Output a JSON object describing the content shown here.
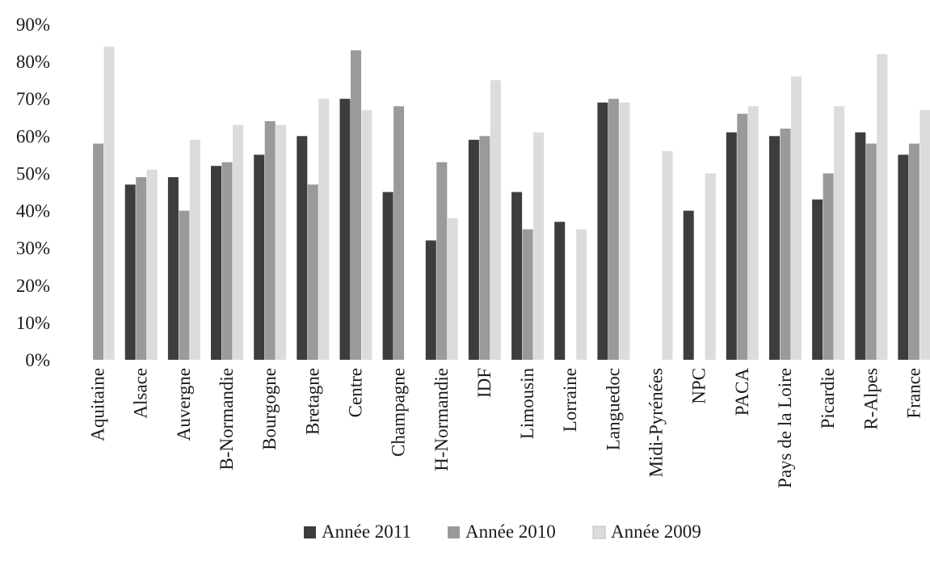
{
  "chart_data": {
    "type": "bar",
    "title": "",
    "xlabel": "",
    "ylabel": "",
    "ylim": [
      0,
      90
    ],
    "y_ticks": [
      "0%",
      "10%",
      "20%",
      "30%",
      "40%",
      "50%",
      "60%",
      "70%",
      "80%",
      "90%"
    ],
    "y_tick_values": [
      0,
      10,
      20,
      30,
      40,
      50,
      60,
      70,
      80,
      90
    ],
    "grid": false,
    "legend_position": "bottom-center",
    "categories": [
      "Aquitaine",
      "Alsace",
      "Auvergne",
      "B-Normandie",
      "Bourgogne",
      "Bretagne",
      "Centre",
      "Champagne",
      "H-Normandie",
      "IDF",
      "Limousin",
      "Lorraine",
      "Languedoc",
      "Midi-Pyrénées",
      "NPC",
      "PACA",
      "Pays de la Loire",
      "Picardie",
      "R-Alpes",
      "France"
    ],
    "series": [
      {
        "name": "Année 2011",
        "color": "#3d3d3d",
        "values": [
          null,
          47,
          49,
          52,
          55,
          60,
          70,
          45,
          32,
          59,
          45,
          37,
          69,
          null,
          40,
          61,
          60,
          43,
          61,
          55
        ]
      },
      {
        "name": "Année 2010",
        "color": "#9a9a9a",
        "values": [
          58,
          49,
          40,
          53,
          64,
          47,
          83,
          68,
          53,
          60,
          35,
          null,
          70,
          null,
          null,
          66,
          62,
          50,
          58,
          58
        ]
      },
      {
        "name": "Année 2009",
        "color": "#dcdcdc",
        "values": [
          84,
          51,
          59,
          63,
          63,
          70,
          67,
          null,
          38,
          75,
          61,
          35,
          69,
          56,
          50,
          68,
          76,
          68,
          82,
          67
        ]
      }
    ]
  }
}
